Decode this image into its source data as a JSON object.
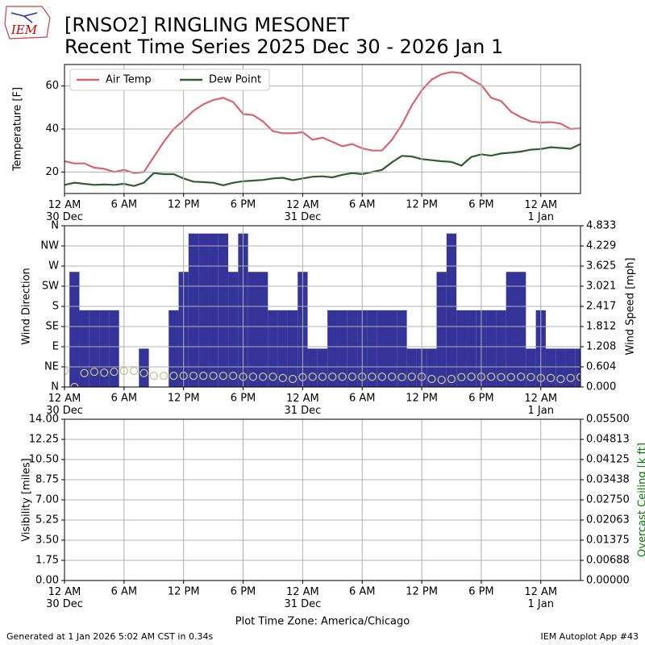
{
  "title": "[RNSO2] RINGLING MESONET",
  "subtitle": "Recent Time Series 2025 Dec 30 - 2026 Jan 1",
  "logo_text": "IEM",
  "footer_left": "Generated at 1 Jan 2026 5:02 AM CST in 0.34s",
  "footer_right": "IEM Autoplot App #43",
  "chart_data": [
    {
      "type": "line",
      "ylabel": "Temperature [F]",
      "xlim": [
        0,
        52
      ],
      "xticks": [
        {
          "value": 0,
          "label": "12 AM\n30 Dec"
        },
        {
          "value": 6,
          "label": "6 AM"
        },
        {
          "value": 12,
          "label": "12 PM"
        },
        {
          "value": 18,
          "label": "6 PM"
        },
        {
          "value": 24,
          "label": "12 AM\n31 Dec"
        },
        {
          "value": 30,
          "label": "6 AM"
        },
        {
          "value": 36,
          "label": "12 PM"
        },
        {
          "value": 42,
          "label": "6 PM"
        },
        {
          "value": 48,
          "label": "12 AM\n1 Jan"
        }
      ],
      "ylim": [
        10,
        70
      ],
      "yticks": [
        20,
        40,
        60
      ],
      "grid": true,
      "legend": "upper left",
      "x": [
        0,
        1,
        2,
        3,
        4,
        5,
        6,
        7,
        8,
        9,
        10,
        11,
        12,
        13,
        14,
        15,
        16,
        17,
        18,
        19,
        20,
        21,
        22,
        23,
        24,
        25,
        26,
        27,
        28,
        29,
        30,
        31,
        32,
        33,
        34,
        35,
        36,
        37,
        38,
        39,
        40,
        41,
        42,
        43,
        44,
        45,
        46,
        47,
        48,
        49,
        50,
        51,
        52
      ],
      "series": [
        {
          "name": "Air Temp",
          "color": "#d9646c",
          "values": [
            25,
            24,
            24,
            22,
            21.5,
            20,
            21,
            19.5,
            20,
            27,
            34,
            40,
            44,
            48.5,
            51.5,
            53.5,
            54.5,
            52.5,
            47,
            46.5,
            43.5,
            39,
            38,
            38,
            38.5,
            35,
            36,
            34,
            32,
            33,
            31,
            30,
            30,
            35,
            42,
            51,
            58,
            63,
            65.5,
            66.5,
            66,
            63,
            60.5,
            54.5,
            53,
            48,
            45.5,
            43.5,
            43,
            43.2,
            42.5,
            40,
            40.3
          ]
        },
        {
          "name": "Dew Point",
          "color": "#2f5f2f",
          "values": [
            14,
            15,
            14.5,
            14,
            14.2,
            14,
            14.5,
            13.5,
            15,
            19.5,
            19,
            19,
            17,
            15.5,
            15.3,
            15,
            13.8,
            15,
            15.7,
            16,
            16.3,
            17,
            17.3,
            16.2,
            17,
            17.8,
            18,
            17.5,
            18.7,
            19.5,
            19,
            20,
            21,
            24.5,
            27.5,
            27.2,
            26,
            25.5,
            25,
            24.7,
            23,
            27,
            28.2,
            27.6,
            28.6,
            29,
            29.5,
            30.4,
            30.7,
            31.5,
            31.2,
            30.8,
            33
          ]
        }
      ]
    },
    {
      "type": "bar",
      "ylabel": "Wind Direction",
      "y2label": "Wind Speed [mph]",
      "xlim": [
        0,
        52
      ],
      "xticks": [
        {
          "value": 0,
          "label": "12 AM\n30 Dec"
        },
        {
          "value": 6,
          "label": "6 AM"
        },
        {
          "value": 12,
          "label": "12 PM"
        },
        {
          "value": 18,
          "label": "6 PM"
        },
        {
          "value": 24,
          "label": "12 AM\n31 Dec"
        },
        {
          "value": 30,
          "label": "6 AM"
        },
        {
          "value": 36,
          "label": "12 PM"
        },
        {
          "value": 42,
          "label": "6 PM"
        },
        {
          "value": 48,
          "label": "12 AM\n1 Jan"
        }
      ],
      "ylim": [
        0,
        360
      ],
      "yticks": [
        {
          "value": 0,
          "label": "N"
        },
        {
          "value": 45,
          "label": "NE"
        },
        {
          "value": 90,
          "label": "E"
        },
        {
          "value": 135,
          "label": "SE"
        },
        {
          "value": 180,
          "label": "S"
        },
        {
          "value": 225,
          "label": "SW"
        },
        {
          "value": 270,
          "label": "W"
        },
        {
          "value": 315,
          "label": "NW"
        },
        {
          "value": 360,
          "label": "N"
        }
      ],
      "y2lim": [
        0,
        4.833
      ],
      "y2ticks": [
        {
          "value": 0,
          "label": "0.000"
        },
        0.604,
        1.208,
        1.812,
        2.417,
        3.021,
        3.625,
        4.229,
        4.833
      ],
      "grid": true,
      "x": [
        0,
        1,
        2,
        3,
        4,
        5,
        6,
        7,
        8,
        9,
        10,
        11,
        12,
        13,
        14,
        15,
        16,
        17,
        18,
        19,
        20,
        21,
        22,
        23,
        24,
        25,
        26,
        27,
        28,
        29,
        30,
        31,
        32,
        33,
        34,
        35,
        36,
        37,
        38,
        39,
        40,
        41,
        42,
        43,
        44,
        45,
        46,
        47,
        48,
        49,
        50,
        51,
        52
      ],
      "series": [
        {
          "name": "Wind Speed",
          "type": "bar",
          "axis": "y2",
          "color": "#333399",
          "values": [
            0,
            3.45,
            2.3,
            2.3,
            2.3,
            2.3,
            0,
            0,
            1.15,
            0,
            0,
            2.3,
            3.45,
            4.6,
            4.6,
            4.6,
            4.6,
            3.45,
            4.6,
            3.45,
            3.45,
            2.3,
            2.3,
            2.3,
            3.45,
            1.15,
            1.15,
            2.3,
            2.3,
            2.3,
            2.3,
            2.3,
            2.3,
            2.3,
            2.3,
            1.15,
            1.15,
            1.15,
            3.45,
            4.6,
            2.3,
            2.3,
            2.3,
            2.3,
            2.3,
            3.45,
            3.45,
            1.15,
            2.3,
            1.15,
            1.15,
            1.15,
            1.15
          ]
        },
        {
          "name": "Wind Direction",
          "type": "scatter",
          "axis": "y",
          "color": "#c5c58a",
          "values": [
            36,
            0,
            31,
            34,
            32,
            34,
            36,
            36,
            31,
            25,
            25,
            25,
            25,
            25,
            25,
            25,
            25,
            25,
            23,
            23,
            23,
            23,
            20,
            18,
            22,
            23,
            23,
            23,
            23,
            23,
            23,
            23,
            23,
            23,
            22,
            23,
            23,
            18,
            16,
            18,
            22,
            23,
            23,
            23,
            22,
            22,
            23,
            22,
            20,
            20,
            18,
            20,
            22
          ]
        }
      ]
    },
    {
      "type": "line",
      "ylabel": "Visibility [miles]",
      "y2label": "Overcast Ceiling [k ft]",
      "y2color": "#008000",
      "xlabel": "Plot Time Zone: America/Chicago",
      "xlim": [
        0,
        52
      ],
      "xticks": [
        {
          "value": 0,
          "label": "12 AM\n30 Dec"
        },
        {
          "value": 6,
          "label": "6 AM"
        },
        {
          "value": 12,
          "label": "12 PM"
        },
        {
          "value": 18,
          "label": "6 PM"
        },
        {
          "value": 24,
          "label": "12 AM\n31 Dec"
        },
        {
          "value": 30,
          "label": "6 AM"
        },
        {
          "value": 36,
          "label": "12 PM"
        },
        {
          "value": 42,
          "label": "6 PM"
        },
        {
          "value": 48,
          "label": "12 AM\n1 Jan"
        }
      ],
      "ylim": [
        0,
        14
      ],
      "yticks": [
        {
          "value": 0,
          "label": "0.00"
        },
        1.75,
        {
          "value": 3.5,
          "label": "3.50"
        },
        5.25,
        {
          "value": 7,
          "label": "7.00"
        },
        8.75,
        {
          "value": 10.5,
          "label": "10.50"
        },
        12.25,
        {
          "value": 14,
          "label": "14.00"
        }
      ],
      "y2lim": [
        0,
        0.055
      ],
      "y2ticks": [
        {
          "value": 0,
          "label": "0.00000"
        },
        0.00688,
        0.01375,
        0.02063,
        {
          "value": 0.0275,
          "label": "0.02750"
        },
        0.03438,
        0.04125,
        0.04813,
        {
          "value": 0.055,
          "label": "0.05500"
        }
      ],
      "grid": true,
      "series": []
    }
  ]
}
